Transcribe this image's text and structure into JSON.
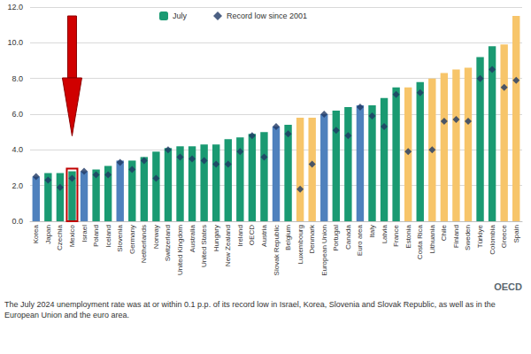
{
  "chart_data": {
    "type": "bar",
    "categories": [
      "Korea",
      "Japan",
      "Czechia",
      "Mexico",
      "Israel",
      "Poland",
      "Iceland",
      "Slovenia",
      "Germany",
      "Netherlands",
      "Norway",
      "Switzerland",
      "United Kingdom",
      "Australia",
      "United States",
      "Hungary",
      "New Zealand",
      "Ireland",
      "OECD",
      "Austria",
      "Slovak Republic",
      "Belgium",
      "Luxembourg",
      "Denmark",
      "European Union",
      "Portugal",
      "Canada",
      "Euro area",
      "Italy",
      "Latvia",
      "France",
      "Estonia",
      "Costa Rica",
      "Lithuania",
      "Chile",
      "Finland",
      "Sweden",
      "Türkiye",
      "Colombia",
      "Greece",
      "Spain"
    ],
    "series": [
      {
        "name": "July",
        "type": "bar",
        "color": "#1a9a72",
        "colors": [
          "#4f81bd",
          "#1a9a72",
          "#1a9a72",
          "#1a9a72",
          "#4f81bd",
          "#1a9a72",
          "#1a9a72",
          "#4f81bd",
          "#1a9a72",
          "#1a9a72",
          "#1a9a72",
          "#1a9a72",
          "#1a9a72",
          "#1a9a72",
          "#1a9a72",
          "#1a9a72",
          "#1a9a72",
          "#1a9a72",
          "#1a9a72",
          "#1a9a72",
          "#4f81bd",
          "#1a9a72",
          "#f7c56a",
          "#f7c56a",
          "#4f81bd",
          "#1a9a72",
          "#1a9a72",
          "#4f81bd",
          "#1a9a72",
          "#1a9a72",
          "#1a9a72",
          "#f7c56a",
          "#1a9a72",
          "#f7c56a",
          "#f7c56a",
          "#f7c56a",
          "#f7c56a",
          "#1a9a72",
          "#1a9a72",
          "#f7c56a",
          "#f7c56a"
        ],
        "values": [
          2.5,
          2.7,
          2.7,
          2.8,
          2.8,
          2.9,
          3.1,
          3.4,
          3.4,
          3.6,
          3.9,
          4.1,
          4.2,
          4.2,
          4.3,
          4.3,
          4.6,
          4.7,
          4.9,
          5.0,
          5.3,
          5.4,
          5.8,
          5.8,
          6.0,
          6.2,
          6.4,
          6.5,
          6.5,
          6.9,
          7.5,
          7.5,
          7.8,
          8.0,
          8.3,
          8.5,
          8.6,
          9.2,
          9.8,
          9.9,
          11.5
        ]
      },
      {
        "name": "Record low since 2001",
        "type": "scatter",
        "color": "#1f3864",
        "marker": "diamond",
        "values": [
          2.5,
          2.3,
          1.9,
          2.4,
          2.8,
          2.6,
          2.6,
          3.3,
          2.9,
          3.4,
          2.4,
          4.0,
          3.6,
          3.5,
          3.4,
          3.2,
          3.2,
          3.9,
          4.8,
          3.6,
          5.3,
          4.9,
          1.8,
          3.2,
          6.0,
          5.1,
          4.8,
          6.4,
          5.9,
          5.3,
          7.1,
          3.9,
          7.2,
          4.0,
          5.6,
          5.7,
          5.6,
          8.0,
          8.5,
          7.5,
          7.9
        ]
      }
    ],
    "ylim": [
      0,
      12
    ],
    "yticks": [
      {
        "value": 0,
        "label": "0.0"
      },
      {
        "value": 2,
        "label": "2.0"
      },
      {
        "value": 4,
        "label": "4.0"
      },
      {
        "value": 6,
        "label": "6.0"
      },
      {
        "value": 8,
        "label": "8.0"
      },
      {
        "value": 10,
        "label": "10.0"
      },
      {
        "value": 12,
        "label": "12.0"
      }
    ],
    "grid": true,
    "legend": "top-left",
    "annotations": [
      "The July 2024 unemployment rate was at or within 0.1 p.p. of its record low in Israel, Korea, Slovenia and Slovak Republic, as well as in the European Union and the euro area.",
      "OECD"
    ]
  }
}
